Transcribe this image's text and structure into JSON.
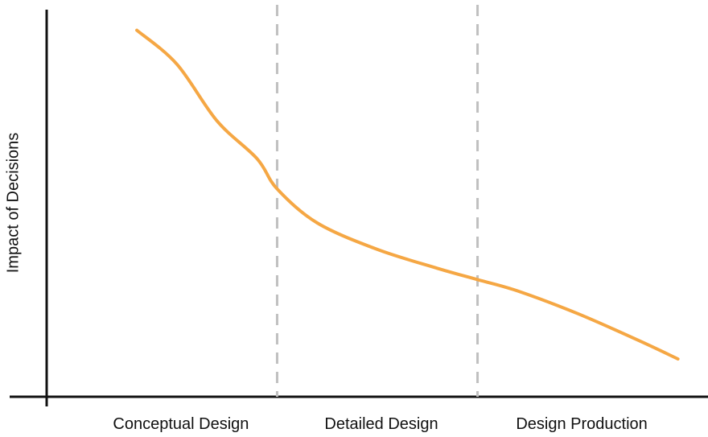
{
  "chart_data": {
    "type": "line",
    "title": "",
    "xlabel": "",
    "ylabel": "Impact of Decisions",
    "categories": [
      "Conceptual Design",
      "Detailed Design",
      "Design Production"
    ],
    "x": [
      0.3,
      0.5,
      0.7,
      0.9,
      1.0,
      1.2,
      1.5,
      1.8,
      2.0,
      2.2,
      2.5,
      2.8,
      3.0
    ],
    "series": [
      {
        "values": [
          97,
          88,
          73,
          63,
          55,
          46,
          39,
          34,
          31,
          28,
          22,
          15,
          10
        ]
      }
    ],
    "xlim": [
      -0.15,
      3.15
    ],
    "ylim": [
      0,
      105
    ],
    "phase_boundaries": [
      1,
      2
    ],
    "grid": false,
    "legend": "none",
    "colors": {
      "line": "#F5A744",
      "divider": "#C0C0C0",
      "axis": "#111111"
    }
  }
}
